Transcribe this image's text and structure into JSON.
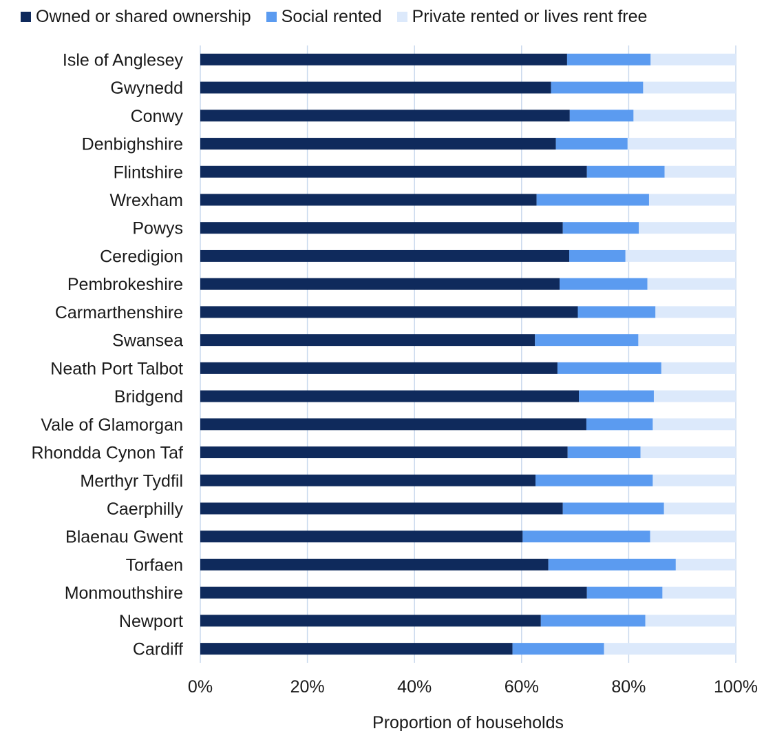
{
  "chart_data": {
    "type": "bar",
    "orientation": "horizontal",
    "stacked": true,
    "title": "",
    "xlabel": "Proportion of households",
    "ylabel": "",
    "xlim": [
      0,
      100
    ],
    "xticks": [
      "0%",
      "20%",
      "40%",
      "60%",
      "80%",
      "100%"
    ],
    "grid": "vertical",
    "legend_position": "top",
    "categories": [
      "Isle of Anglesey",
      "Gwynedd",
      "Conwy",
      "Denbighshire",
      "Flintshire",
      "Wrexham",
      "Powys",
      "Ceredigion",
      "Pembrokeshire",
      "Carmarthenshire",
      "Swansea",
      "Neath Port Talbot",
      "Bridgend",
      "Vale of Glamorgan",
      "Rhondda Cynon Taf",
      "Merthyr Tydfil",
      "Caerphilly",
      "Blaenau Gwent",
      "Torfaen",
      "Monmouthshire",
      "Newport",
      "Cardiff"
    ],
    "series": [
      {
        "name": "Owned or shared ownership",
        "color": "#0f2a5c",
        "values": [
          68.5,
          65.5,
          69.0,
          66.4,
          72.2,
          62.8,
          67.7,
          68.9,
          67.1,
          70.5,
          62.5,
          66.7,
          70.7,
          72.1,
          68.6,
          62.6,
          67.7,
          60.2,
          65.0,
          72.2,
          63.6,
          58.3
        ]
      },
      {
        "name": "Social rented",
        "color": "#5b9bf0",
        "values": [
          15.6,
          17.2,
          11.9,
          13.4,
          14.5,
          21.0,
          14.2,
          10.5,
          16.4,
          14.5,
          19.3,
          19.4,
          14.0,
          12.4,
          13.6,
          21.9,
          18.9,
          23.8,
          23.8,
          14.1,
          19.5,
          17.1
        ]
      },
      {
        "name": "Private rented or lives rent free",
        "color": "#dce9fb",
        "values": [
          15.9,
          17.3,
          19.1,
          20.2,
          13.3,
          16.2,
          18.1,
          20.6,
          16.5,
          15.0,
          18.2,
          13.9,
          15.3,
          15.5,
          17.8,
          15.5,
          13.4,
          16.0,
          11.2,
          13.7,
          16.9,
          24.6
        ]
      }
    ]
  }
}
